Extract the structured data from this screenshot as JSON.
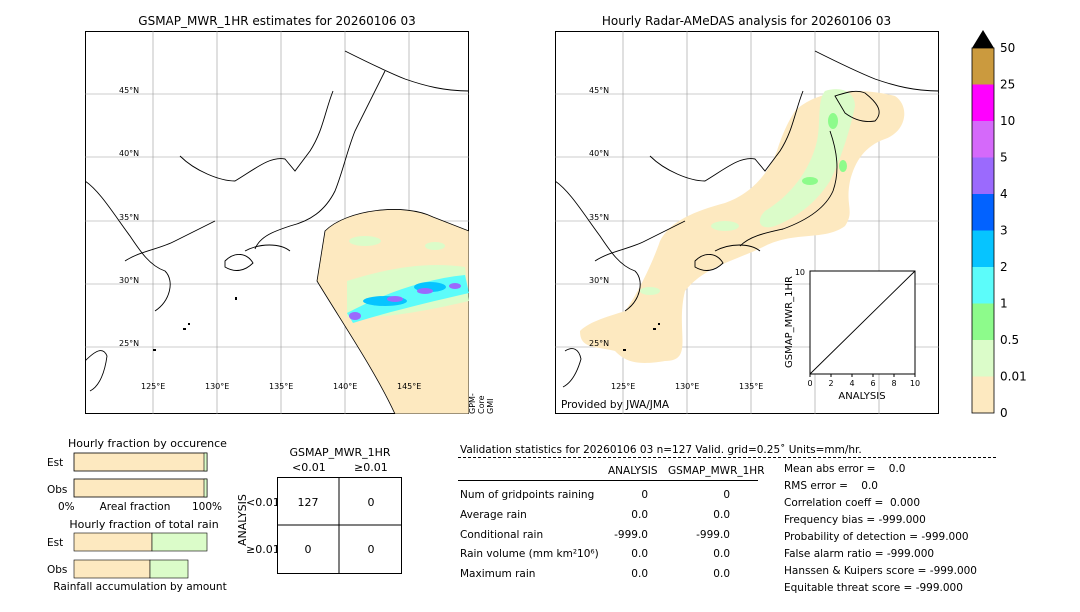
{
  "left_map": {
    "title": "GSMAP_MWR_1HR estimates for 20260106 03",
    "sensor_note": "GPM-Core GMI",
    "lat_labels": [
      "45°N",
      "40°N",
      "35°N",
      "30°N",
      "25°N"
    ],
    "lon_labels": [
      "125°E",
      "130°E",
      "135°E",
      "140°E",
      "145°E"
    ]
  },
  "right_map": {
    "title": "Hourly Radar-AMeDAS analysis for 20260106 03",
    "credit": "Provided by JWA/JMA",
    "lat_labels": [
      "45°N",
      "40°N",
      "35°N",
      "30°N",
      "25°N"
    ],
    "lon_labels": [
      "125°E",
      "130°E",
      "135°E"
    ]
  },
  "inset": {
    "ylabel": "GSMAP_MWR_1HR",
    "xlabel": "ANALYSIS",
    "ticks": [
      "0",
      "2",
      "4",
      "6",
      "8",
      "10"
    ],
    "top_tick": "10"
  },
  "colorbar": {
    "levels": [
      "0",
      "0.01",
      "0.5",
      "1",
      "2",
      "3",
      "4",
      "5",
      "10",
      "25",
      "50"
    ],
    "colors": [
      "#fde9c0",
      "#dbfcc9",
      "#8dfb8b",
      "#5cfcfa",
      "#06c4ff",
      "#0262ff",
      "#9b6afd",
      "#d569fa",
      "#ff00ff",
      "#cb9a3e"
    ],
    "extend_color": "#000000"
  },
  "occurrence": {
    "title": "Hourly fraction by occurence",
    "rows": [
      "Est",
      "Obs"
    ],
    "axis_left": "0%",
    "axis_mid": "Areal fraction",
    "axis_right": "100%"
  },
  "total_rain": {
    "title": "Hourly fraction of total rain",
    "rows": [
      "Est",
      "Obs"
    ],
    "footer": "Rainfall accumulation by amount"
  },
  "contingency": {
    "title": "GSMAP_MWR_1HR",
    "col_headers": [
      "<0.01",
      "≥0.01"
    ],
    "row_axis": "ANALYSIS",
    "row_headers": [
      "<0.01",
      "≥0.01"
    ],
    "cells": [
      [
        "127",
        "0"
      ],
      [
        "0",
        "0"
      ]
    ]
  },
  "validation": {
    "header": "Validation statistics for 20260106 03  n=127 Valid. grid=0.25˚ Units=mm/hr.",
    "col_analysis": "ANALYSIS",
    "col_gsmap": "GSMAP_MWR_1HR",
    "rows": [
      {
        "label": "Num of gridpoints raining",
        "analysis": "0",
        "gsmap": "0"
      },
      {
        "label": "Average rain",
        "analysis": "0.0",
        "gsmap": "0.0"
      },
      {
        "label": "Conditional rain",
        "analysis": "-999.0",
        "gsmap": "-999.0"
      },
      {
        "label": "Rain volume (mm km²10⁶)",
        "analysis": "0.0",
        "gsmap": "0.0"
      },
      {
        "label": "Maximum rain",
        "analysis": "0.0",
        "gsmap": "0.0"
      }
    ],
    "scores": [
      "Mean abs error =    0.0",
      "RMS error =    0.0",
      "Correlation coeff =  0.000",
      "Frequency bias = -999.000",
      "Probability of detection = -999.000",
      "False alarm ratio = -999.000",
      "Hanssen & Kuipers score = -999.000",
      "Equitable threat score = -999.000"
    ]
  },
  "chart_data": [
    {
      "type": "heatmap",
      "title": "GSMAP_MWR_1HR estimates for 20260106 03"
    },
    {
      "type": "heatmap",
      "title": "Hourly Radar-AMeDAS analysis for 20260106 03"
    },
    {
      "type": "scatter",
      "xlabel": "ANALYSIS",
      "ylabel": "GSMAP_MWR_1HR",
      "xlim": [
        0,
        10
      ],
      "ylim": [
        0,
        10
      ]
    },
    {
      "type": "bar",
      "title": "Hourly fraction by occurence",
      "categories": [
        "Est",
        "Obs"
      ],
      "values": [
        1.0,
        1.0
      ]
    },
    {
      "type": "bar",
      "title": "Hourly fraction of total rain",
      "categories": [
        "Est",
        "Obs"
      ],
      "series": [
        {
          "values": [
            0.58,
            0.57
          ]
        },
        {
          "values": [
            0.42,
            0.29
          ]
        }
      ]
    }
  ]
}
